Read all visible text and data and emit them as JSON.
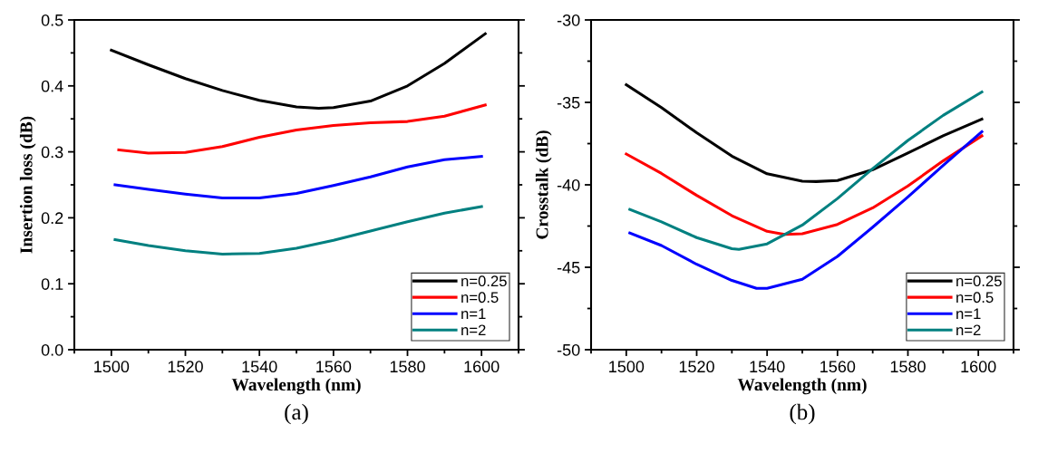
{
  "chart_data": [
    {
      "type": "line",
      "xlabel": "Wavelength (nm)",
      "ylabel": "Insertion loss (dB)",
      "annotations": [
        "(a)"
      ],
      "xlim": [
        1490,
        1610
      ],
      "xticks": [
        1500,
        1520,
        1540,
        1560,
        1580,
        1600
      ],
      "ylim": [
        0,
        0.5
      ],
      "yticks": [
        {
          "value": 0,
          "label": "0.0"
        },
        0.1,
        0.2,
        0.3,
        0.4,
        0.5
      ],
      "grid": false,
      "legend": "lower right",
      "line_style": "solid",
      "marker": "none",
      "series": [
        {
          "name": "n=0.25",
          "color": "#000000",
          "x": [
            1500,
            1510,
            1520,
            1530,
            1540,
            1550,
            1556,
            1560,
            1570,
            1580,
            1590,
            1601
          ],
          "values": [
            0.454,
            0.432,
            0.411,
            0.393,
            0.378,
            0.368,
            0.366,
            0.367,
            0.377,
            0.4,
            0.434,
            0.479
          ]
        },
        {
          "name": "n=0.5",
          "color": "#ff0000",
          "x": [
            1502,
            1510,
            1520,
            1530,
            1540,
            1550,
            1560,
            1570,
            1580,
            1590,
            1601
          ],
          "values": [
            0.303,
            0.298,
            0.299,
            0.308,
            0.322,
            0.333,
            0.34,
            0.344,
            0.346,
            0.354,
            0.371
          ]
        },
        {
          "name": "n=1",
          "color": "#0000ff",
          "x": [
            1501,
            1510,
            1520,
            1530,
            1540,
            1550,
            1560,
            1570,
            1580,
            1590,
            1600
          ],
          "values": [
            0.25,
            0.243,
            0.236,
            0.23,
            0.23,
            0.237,
            0.249,
            0.262,
            0.277,
            0.288,
            0.293
          ]
        },
        {
          "name": "n=2",
          "color": "#008080",
          "x": [
            1501,
            1510,
            1520,
            1530,
            1540,
            1550,
            1560,
            1570,
            1580,
            1590,
            1600
          ],
          "values": [
            0.167,
            0.158,
            0.15,
            0.145,
            0.146,
            0.154,
            0.166,
            0.18,
            0.194,
            0.207,
            0.217
          ]
        }
      ]
    },
    {
      "type": "line",
      "xlabel": "Wavelength (nm)",
      "ylabel": "Crosstalk (dB)",
      "annotations": [
        "(b)"
      ],
      "xlim": [
        1490,
        1610
      ],
      "xticks": [
        1500,
        1520,
        1540,
        1560,
        1580,
        1600
      ],
      "ylim": [
        -50,
        -30
      ],
      "yticks": [
        {
          "value": -50,
          "label": "-50"
        },
        {
          "value": -45,
          "label": "-45"
        },
        {
          "value": -40,
          "label": "-40"
        },
        {
          "value": -35,
          "label": "-35"
        },
        {
          "value": -30,
          "label": "-30"
        }
      ],
      "grid": false,
      "legend": "lower right",
      "line_style": "solid",
      "marker": "none",
      "series": [
        {
          "name": "n=0.25",
          "color": "#000000",
          "x": [
            1500,
            1510,
            1520,
            1530,
            1540,
            1550,
            1554,
            1560,
            1570,
            1580,
            1590,
            1601
          ],
          "values": [
            -33.93,
            -35.32,
            -36.84,
            -38.26,
            -39.33,
            -39.78,
            -39.8,
            -39.74,
            -39.08,
            -38.07,
            -37.03,
            -36.02
          ]
        },
        {
          "name": "n=0.5",
          "color": "#ff0000",
          "x": [
            1500,
            1510,
            1520,
            1530,
            1540,
            1545,
            1550,
            1560,
            1570,
            1580,
            1590,
            1601
          ],
          "values": [
            -38.13,
            -39.31,
            -40.64,
            -41.87,
            -42.82,
            -43.01,
            -42.97,
            -42.4,
            -41.4,
            -40.07,
            -38.55,
            -37.03
          ]
        },
        {
          "name": "n=1",
          "color": "#0000ff",
          "x": [
            1501,
            1510,
            1520,
            1530,
            1537,
            1540,
            1550,
            1560,
            1570,
            1580,
            1590,
            1601
          ],
          "values": [
            -42.92,
            -43.68,
            -44.82,
            -45.8,
            -46.28,
            -46.28,
            -45.73,
            -44.34,
            -42.57,
            -40.73,
            -38.83,
            -36.78
          ]
        },
        {
          "name": "n=2",
          "color": "#008080",
          "x": [
            1501,
            1510,
            1520,
            1530,
            1532,
            1540,
            1550,
            1560,
            1570,
            1580,
            1590,
            1601
          ],
          "values": [
            -41.49,
            -42.25,
            -43.2,
            -43.87,
            -43.92,
            -43.58,
            -42.44,
            -40.83,
            -39.02,
            -37.31,
            -35.79,
            -34.37
          ]
        }
      ]
    }
  ]
}
